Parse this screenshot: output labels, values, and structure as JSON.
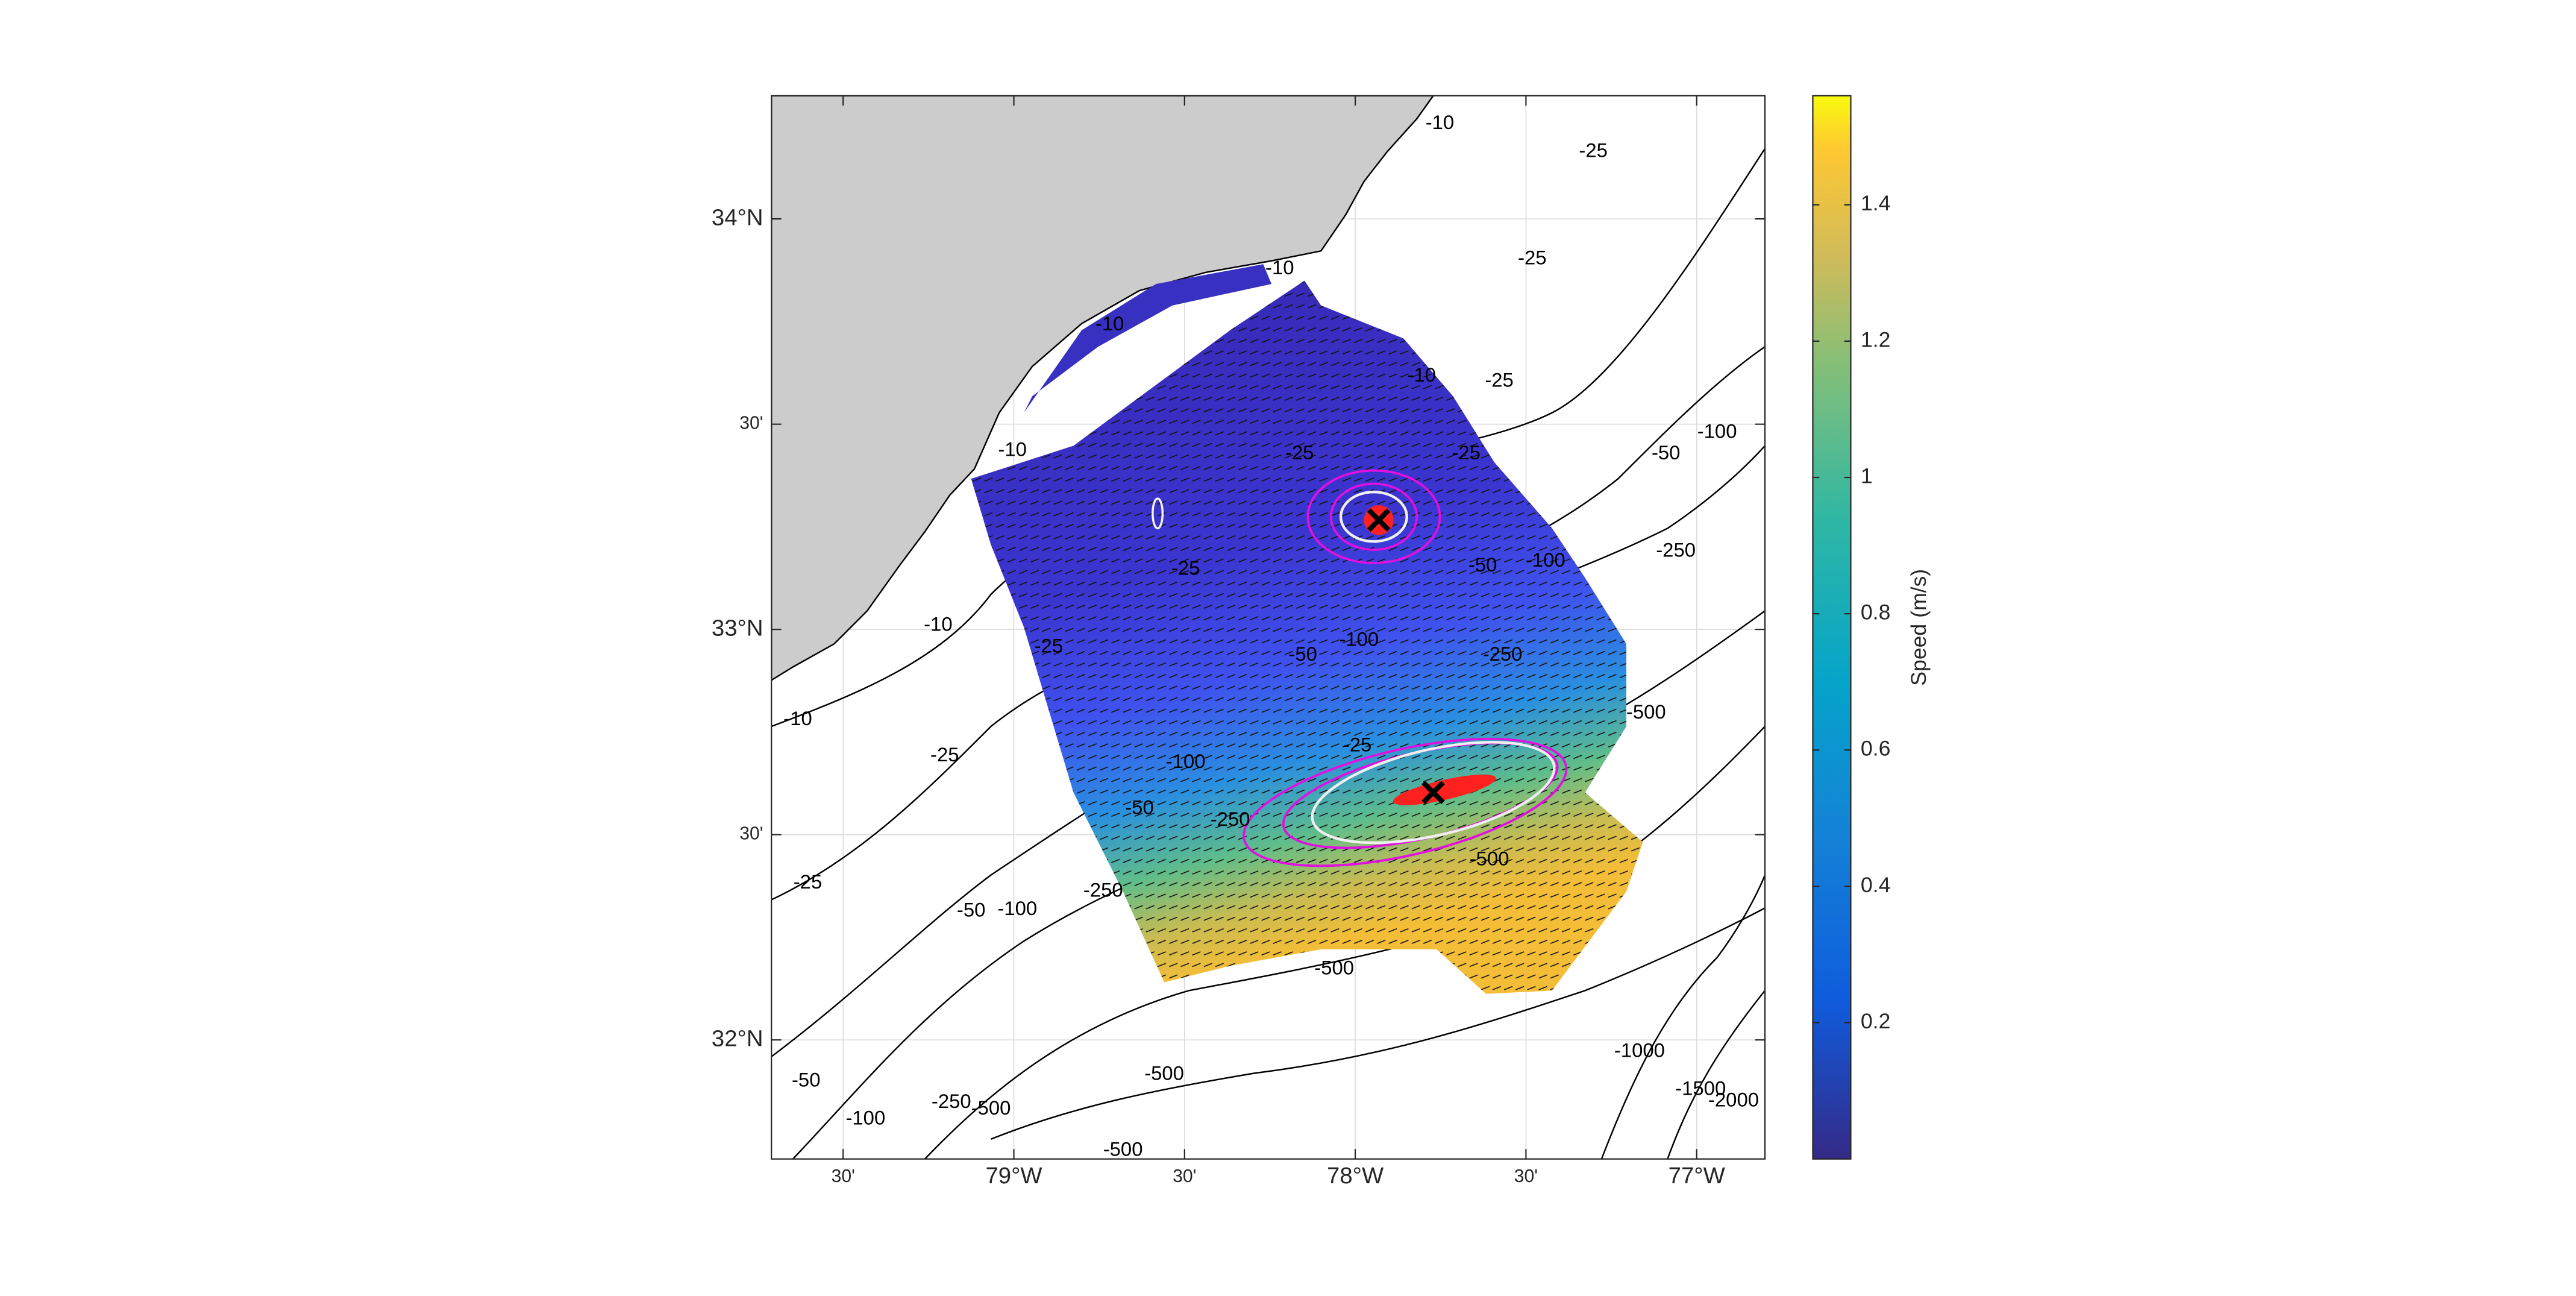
{
  "map": {
    "xlim": [
      -79.71,
      -76.8
    ],
    "ylim": [
      31.71,
      34.3
    ],
    "grid": true,
    "lon_ticks": [
      {
        "value": -79.5,
        "label": "30'"
      },
      {
        "value": -79,
        "label": "79°W"
      },
      {
        "value": -78.5,
        "label": "30'"
      },
      {
        "value": -78,
        "label": "78°W"
      },
      {
        "value": -77.5,
        "label": "30'"
      },
      {
        "value": -77,
        "label": "77°W"
      }
    ],
    "lat_ticks": [
      {
        "value": 34,
        "label": "34°N"
      },
      {
        "value": 33.5,
        "label": "30'"
      },
      {
        "value": 33,
        "label": "33°N"
      },
      {
        "value": 32.5,
        "label": "30'"
      },
      {
        "value": 32,
        "label": "32°N"
      }
    ],
    "contour_labels": [
      "-10",
      "-25",
      "-10",
      "-25",
      "-10",
      "-10",
      "-25",
      "-10",
      "-25",
      "-25",
      "-50",
      "-100",
      "-25",
      "-50",
      "-100",
      "-250",
      "-10",
      "-25",
      "-50",
      "-100",
      "-250",
      "-500",
      "-10",
      "-25",
      "-25",
      "-100",
      "-50",
      "-250",
      "-25",
      "-500",
      "-250",
      "-50",
      "-100",
      "-500",
      "-50",
      "-100",
      "-250",
      "-500",
      "-500",
      "-500",
      "-1000",
      "-1500",
      "-2000"
    ]
  },
  "colorbar": {
    "label": "Speed (m/s)",
    "clim": [
      0,
      1.56
    ],
    "ticks": [
      0.2,
      0.4,
      0.6,
      0.8,
      1,
      1.2,
      1.4
    ]
  }
}
